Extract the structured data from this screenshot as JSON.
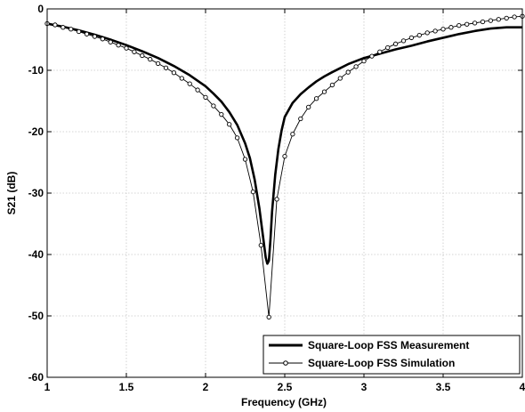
{
  "chart_data": {
    "type": "line",
    "title": "",
    "xlabel": "Frequency (GHz)",
    "ylabel": "S21 (dB)",
    "xlim": [
      1,
      4
    ],
    "ylim": [
      -60,
      0
    ],
    "xticks": [
      1,
      1.5,
      2,
      2.5,
      3,
      3.5,
      4
    ],
    "xtick_labels": [
      "1",
      "1.5",
      "2",
      "2.5",
      "3",
      "3.5",
      "4"
    ],
    "yticks": [
      0,
      -10,
      -20,
      -30,
      -40,
      -50,
      -60
    ],
    "ytick_labels": [
      "0",
      "-10",
      "-20",
      "-30",
      "-40",
      "-50",
      "-60"
    ],
    "grid": true,
    "legend_position": "bottom-right",
    "series": [
      {
        "name": "Square-Loop FSS Measurement",
        "style": "thick-solid",
        "color": "#000000",
        "x": [
          1.0,
          1.1,
          1.2,
          1.3,
          1.4,
          1.5,
          1.6,
          1.7,
          1.8,
          1.9,
          2.0,
          2.05,
          2.1,
          2.15,
          2.2,
          2.25,
          2.28,
          2.31,
          2.34,
          2.36,
          2.38,
          2.39,
          2.4,
          2.41,
          2.42,
          2.44,
          2.46,
          2.48,
          2.5,
          2.55,
          2.6,
          2.65,
          2.7,
          2.75,
          2.8,
          2.9,
          3.0,
          3.1,
          3.2,
          3.3,
          3.4,
          3.5,
          3.6,
          3.7,
          3.8,
          3.9,
          4.0
        ],
        "y": [
          -2.4,
          -2.9,
          -3.5,
          -4.2,
          -5.0,
          -5.9,
          -6.9,
          -8.0,
          -9.3,
          -10.8,
          -12.6,
          -13.8,
          -15.1,
          -16.8,
          -18.9,
          -21.9,
          -24.3,
          -27.8,
          -32.5,
          -36.5,
          -40.5,
          -41.5,
          -41.0,
          -37.5,
          -33.0,
          -27.0,
          -22.8,
          -19.8,
          -17.6,
          -15.3,
          -13.9,
          -12.8,
          -11.8,
          -11.0,
          -10.3,
          -9.0,
          -8.0,
          -7.3,
          -6.6,
          -6.0,
          -5.3,
          -4.7,
          -4.1,
          -3.6,
          -3.2,
          -3.0,
          -3.0
        ]
      },
      {
        "name": "Square-Loop FSS Simulation",
        "style": "thin-line-with-circle-markers",
        "color": "#000000",
        "x": [
          1.0,
          1.05,
          1.1,
          1.15,
          1.2,
          1.25,
          1.3,
          1.35,
          1.4,
          1.45,
          1.5,
          1.55,
          1.6,
          1.65,
          1.7,
          1.75,
          1.8,
          1.85,
          1.9,
          1.95,
          2.0,
          2.05,
          2.1,
          2.15,
          2.2,
          2.25,
          2.3,
          2.35,
          2.4,
          2.45,
          2.5,
          2.55,
          2.6,
          2.65,
          2.7,
          2.75,
          2.8,
          2.85,
          2.9,
          2.95,
          3.0,
          3.05,
          3.1,
          3.15,
          3.2,
          3.25,
          3.3,
          3.35,
          3.4,
          3.45,
          3.5,
          3.55,
          3.6,
          3.65,
          3.7,
          3.75,
          3.8,
          3.85,
          3.9,
          3.95,
          4.0
        ],
        "y": [
          -2.4,
          -2.6,
          -3.0,
          -3.3,
          -3.7,
          -4.1,
          -4.5,
          -4.9,
          -5.4,
          -5.9,
          -6.4,
          -7.0,
          -7.6,
          -8.2,
          -8.9,
          -9.6,
          -10.4,
          -11.3,
          -12.2,
          -13.2,
          -14.4,
          -15.8,
          -17.2,
          -18.8,
          -21.0,
          -24.5,
          -29.8,
          -38.5,
          -50.2,
          -31.0,
          -24.0,
          -20.4,
          -17.9,
          -16.0,
          -14.6,
          -13.5,
          -12.4,
          -11.3,
          -10.3,
          -9.4,
          -8.5,
          -7.7,
          -7.0,
          -6.3,
          -5.7,
          -5.2,
          -4.7,
          -4.3,
          -3.9,
          -3.6,
          -3.3,
          -3.0,
          -2.7,
          -2.5,
          -2.3,
          -2.1,
          -1.9,
          -1.7,
          -1.5,
          -1.3,
          -1.2
        ]
      }
    ]
  }
}
